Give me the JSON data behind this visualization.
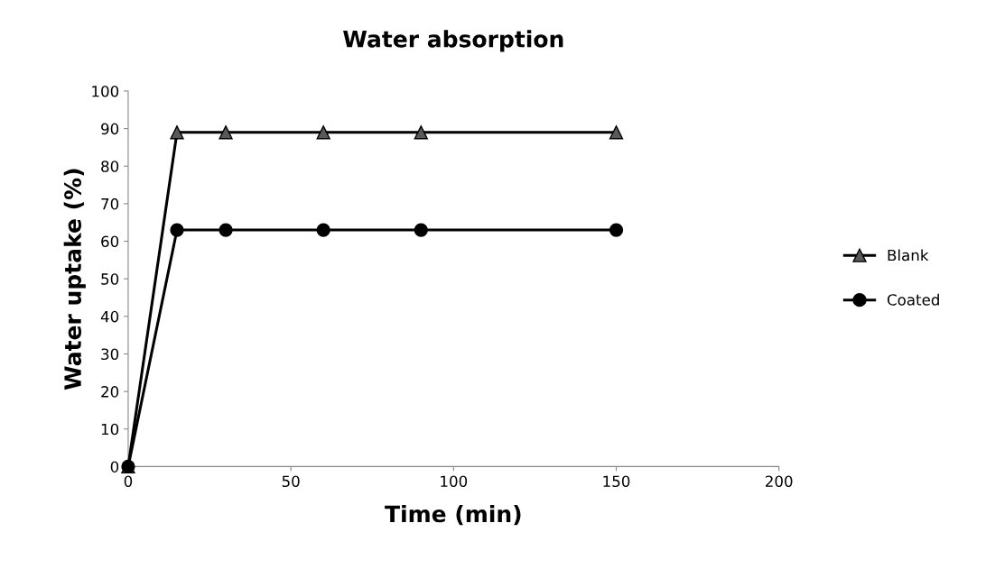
{
  "chart_data": {
    "type": "line",
    "title": "Water absorption",
    "xlabel": "Time (min)",
    "ylabel": "Water uptake (%)",
    "x": [
      0,
      15,
      30,
      60,
      90,
      150
    ],
    "series": [
      {
        "name": "Blank",
        "color": "#595959",
        "values": [
          0,
          89,
          89,
          89,
          89,
          89
        ],
        "marker": "triangle"
      },
      {
        "name": "Coated",
        "color": "#000000",
        "values": [
          0,
          63,
          63,
          63,
          63,
          63
        ],
        "marker": "circle"
      }
    ],
    "xlim": [
      0,
      200
    ],
    "xticks": [
      0,
      50,
      100,
      150,
      200
    ],
    "ylim": [
      0,
      100
    ],
    "yticks": [
      0,
      10,
      20,
      30,
      40,
      50,
      60,
      70,
      80,
      90,
      100
    ],
    "grid": false,
    "legend": "right",
    "line_style": "solid"
  }
}
